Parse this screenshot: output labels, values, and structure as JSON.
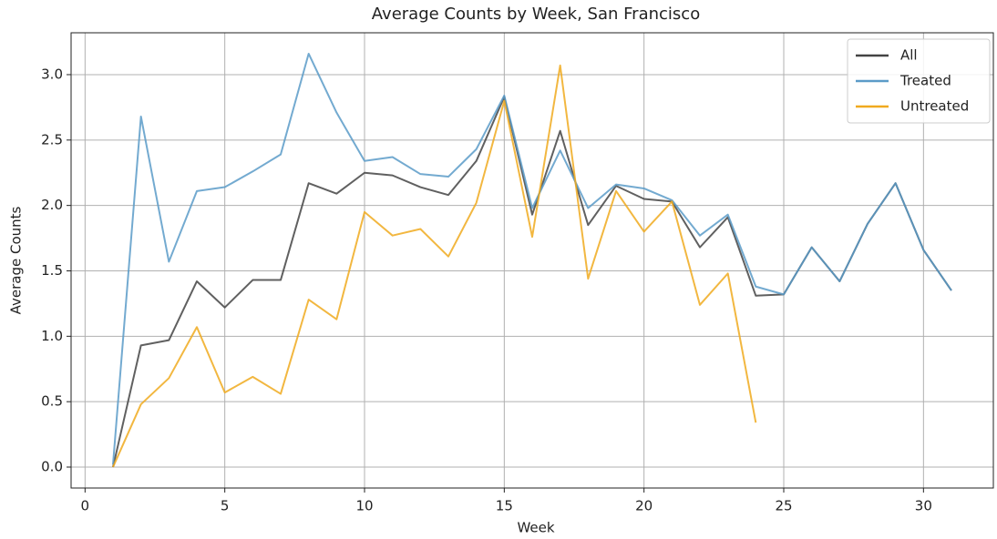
{
  "chart_data": {
    "type": "line",
    "title": "Average Counts by Week, San Francisco",
    "x_label": "Week",
    "y_label": "Average Counts",
    "x": [
      1,
      2,
      3,
      4,
      5,
      6,
      7,
      8,
      9,
      10,
      11,
      12,
      13,
      14,
      15,
      16,
      17,
      18,
      19,
      20,
      21,
      22,
      23,
      24,
      25,
      26,
      27,
      28,
      29,
      30,
      31
    ],
    "series": [
      {
        "name": "All",
        "color": "#444444",
        "values": [
          0,
          0.93,
          0.97,
          1.42,
          1.22,
          1.43,
          1.43,
          2.17,
          2.09,
          2.25,
          2.23,
          2.14,
          2.08,
          2.34,
          2.83,
          1.93,
          2.57,
          1.85,
          2.15,
          2.05,
          2.03,
          1.68,
          1.91,
          1.31,
          1.32,
          1.68,
          1.42,
          1.86,
          2.17,
          1.66,
          1.35
        ]
      },
      {
        "name": "Treated",
        "color": "#5b9bc8",
        "values": [
          0.02,
          2.68,
          1.57,
          2.11,
          2.14,
          2.26,
          2.39,
          3.16,
          2.71,
          2.34,
          2.37,
          2.24,
          2.22,
          2.43,
          2.84,
          1.98,
          2.42,
          1.98,
          2.16,
          2.13,
          2.04,
          1.77,
          1.93,
          1.38,
          1.32,
          1.68,
          1.42,
          1.86,
          2.17,
          1.66,
          1.35
        ]
      },
      {
        "name": "Untreated",
        "color": "#f0aa1e",
        "values": [
          0,
          0.48,
          0.68,
          1.07,
          0.57,
          0.69,
          0.56,
          1.28,
          1.13,
          1.95,
          1.77,
          1.82,
          1.61,
          2.02,
          2.8,
          1.76,
          3.07,
          1.44,
          2.11,
          1.8,
          2.03,
          1.24,
          1.48,
          0.34,
          null,
          null,
          null,
          null,
          null,
          null,
          null
        ]
      }
    ],
    "xlim": [
      -0.5,
      32.5
    ],
    "ylim": [
      -0.16,
      3.32
    ],
    "xticks": [
      0,
      5,
      10,
      15,
      20,
      25,
      30
    ],
    "yticks": [
      {
        "value": 0,
        "label": "0.0"
      },
      0.5,
      {
        "value": 1,
        "label": "1.0"
      },
      1.5,
      {
        "value": 2,
        "label": "2.0"
      },
      2.5,
      {
        "value": 3,
        "label": "3.0"
      }
    ],
    "grid": true,
    "legend": "upper right"
  }
}
